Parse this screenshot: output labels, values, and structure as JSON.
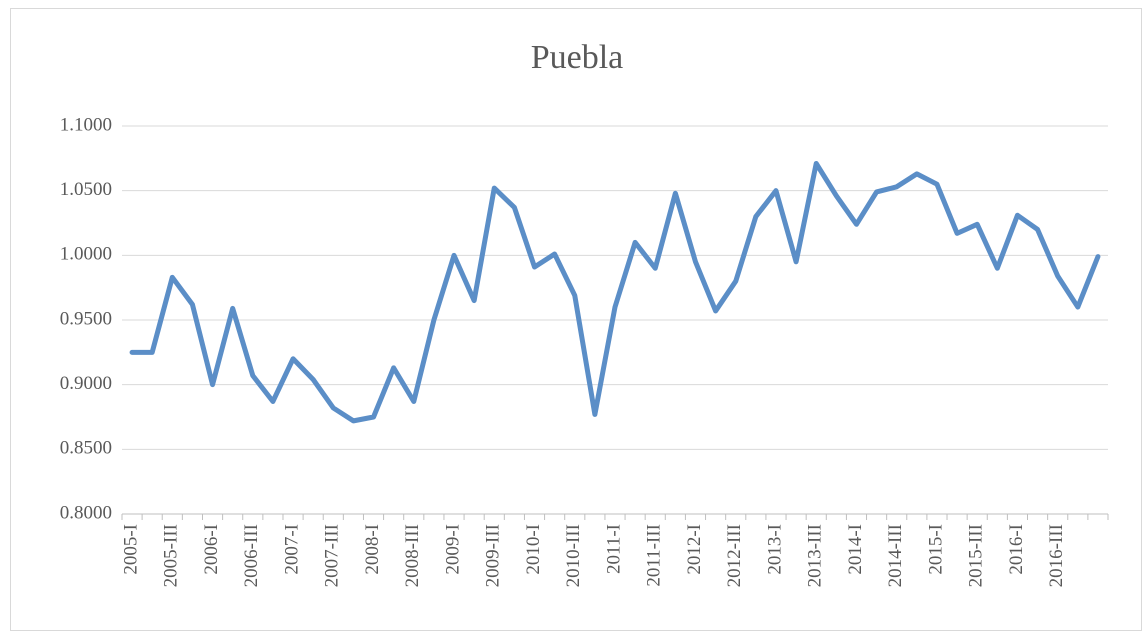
{
  "chart_data": {
    "type": "line",
    "title": "Puebla",
    "categories": [
      "2005-I",
      null,
      "2005-III",
      null,
      "2006-I",
      null,
      "2006-III",
      null,
      "2007-I",
      null,
      "2007-III",
      null,
      "2008-I",
      null,
      "2008-III",
      null,
      "2009-I",
      null,
      "2009-III",
      null,
      "2010-I",
      null,
      "2010-III",
      null,
      "2011-I",
      null,
      "2011-III",
      null,
      "2012-I",
      null,
      "2012-III",
      null,
      "2013-I",
      null,
      "2013-III",
      null,
      "2014-I",
      null,
      "2014-III",
      null,
      "2015-I",
      null,
      "2015-III",
      null,
      "2016-I",
      null,
      "2016-III",
      null,
      null
    ],
    "series": [
      {
        "name": "Puebla",
        "color": "#5b8ec7",
        "values": [
          0.925,
          0.925,
          0.983,
          0.962,
          0.9,
          0.959,
          0.907,
          0.887,
          0.92,
          0.904,
          0.882,
          0.872,
          0.875,
          0.913,
          0.887,
          0.95,
          1.0,
          0.965,
          1.052,
          1.037,
          0.991,
          1.001,
          0.969,
          0.877,
          0.96,
          1.01,
          0.99,
          1.048,
          0.995,
          0.957,
          0.98,
          1.03,
          1.05,
          0.995,
          1.071,
          1.046,
          1.024,
          1.049,
          1.053,
          1.063,
          1.055,
          1.017,
          1.024,
          0.99,
          1.031,
          1.02,
          0.984,
          0.96,
          0.999
        ]
      }
    ],
    "ylim": [
      0.8,
      1.1
    ],
    "yticks": [
      {
        "value": 0.8,
        "label": "0.8000"
      },
      {
        "value": 0.85,
        "label": "0.8500"
      },
      {
        "value": 0.9,
        "label": "0.9000"
      },
      {
        "value": 0.95,
        "label": "0.9500"
      },
      {
        "value": 1.0,
        "label": "1.0000"
      },
      {
        "value": 1.05,
        "label": "1.0500"
      },
      {
        "value": 1.1,
        "label": "1.1000"
      }
    ],
    "grid": true
  }
}
